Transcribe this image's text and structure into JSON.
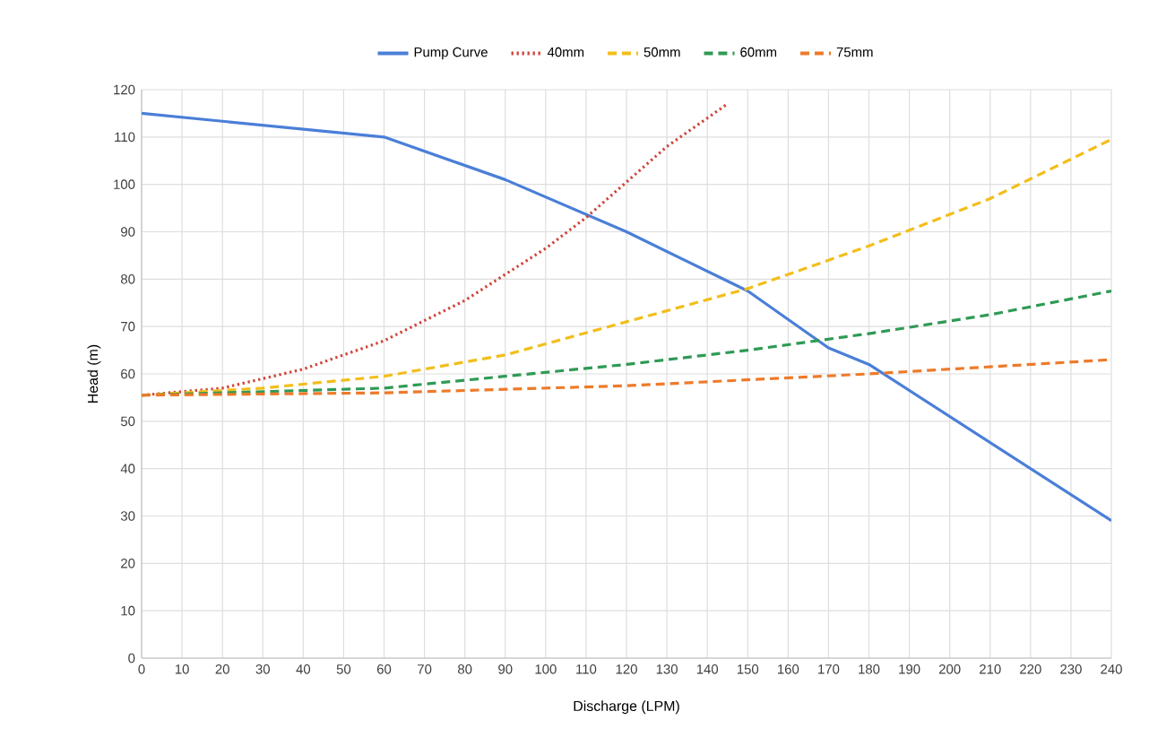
{
  "chart_data": {
    "type": "line",
    "xlabel": "Discharge (LPM)",
    "ylabel": "Head (m)",
    "xlim": [
      0,
      240
    ],
    "xticks": [
      0,
      10,
      20,
      30,
      40,
      50,
      60,
      70,
      80,
      90,
      100,
      110,
      120,
      130,
      140,
      150,
      160,
      170,
      180,
      190,
      200,
      210,
      220,
      230,
      240
    ],
    "ylim": [
      0,
      120
    ],
    "yticks": [
      0,
      10,
      20,
      30,
      40,
      50,
      60,
      70,
      80,
      90,
      100,
      110,
      120
    ],
    "grid": true,
    "legend": "top",
    "series": [
      {
        "name": "Pump Curve",
        "color": "#4a7fd8",
        "line_style": "solid",
        "x": [
          0,
          60,
          90,
          120,
          150,
          170,
          180,
          240
        ],
        "values": [
          115,
          110,
          101,
          90,
          77.5,
          65.5,
          62,
          29
        ]
      },
      {
        "name": "40mm",
        "color": "#d0453b",
        "line_style": "dotted",
        "x": [
          0,
          20,
          40,
          60,
          80,
          100,
          110,
          120,
          130,
          145
        ],
        "values": [
          55.5,
          57,
          61,
          67,
          75.5,
          86.5,
          93,
          100.5,
          108,
          117
        ]
      },
      {
        "name": "50mm",
        "color": "#f2be1a",
        "line_style": "dashed",
        "x": [
          0,
          30,
          60,
          90,
          120,
          150,
          180,
          210,
          240
        ],
        "values": [
          55.5,
          57,
          59.5,
          64,
          71,
          78,
          87,
          97,
          109.5
        ]
      },
      {
        "name": "60mm",
        "color": "#2f9a55",
        "line_style": "dashed",
        "x": [
          0,
          60,
          120,
          150,
          180,
          210,
          240
        ],
        "values": [
          55.5,
          57,
          62,
          65,
          68.5,
          72.5,
          77.5
        ]
      },
      {
        "name": "75mm",
        "color": "#ee7a2b",
        "line_style": "dashed",
        "x": [
          0,
          60,
          120,
          180,
          240
        ],
        "values": [
          55.5,
          56,
          57.5,
          60,
          63
        ]
      }
    ]
  }
}
